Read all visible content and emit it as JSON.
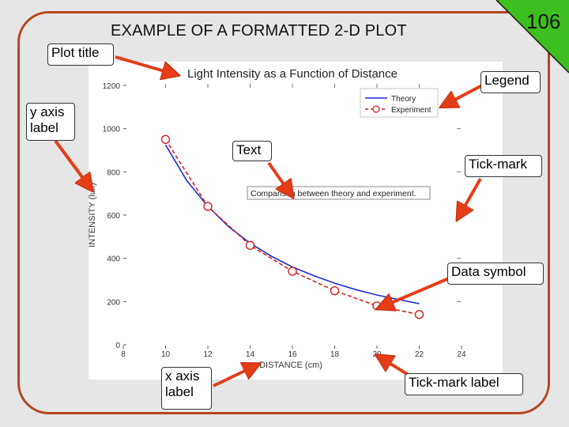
{
  "slide": {
    "title": "EXAMPLE OF A FORMATTED 2-D PLOT",
    "number": "106",
    "frame_color": "#b5461f",
    "triangle_color": "#3dbf1f"
  },
  "callouts": {
    "plot_title": "Plot title",
    "legend": "Legend",
    "y_axis_label": "y axis label",
    "text": "Text",
    "tick_mark": "Tick-mark",
    "data_symbol": "Data symbol",
    "x_axis_label": "x axis label",
    "tick_mark_label": "Tick-mark label"
  },
  "chart_data": {
    "type": "line",
    "title": "Light Intensity as a Function of Distance",
    "xlabel": "DISTANCE (cm)",
    "ylabel": "INTENSITY (lux)",
    "xlim": [
      8,
      24
    ],
    "ylim": [
      0,
      1200
    ],
    "x_ticks": [
      8,
      10,
      12,
      14,
      16,
      18,
      20,
      22,
      24
    ],
    "y_ticks": [
      0,
      200,
      400,
      600,
      800,
      1000,
      1200
    ],
    "annotation": "Comparison between theory and experiment.",
    "legend_position": "top-right",
    "series": [
      {
        "name": "Theory",
        "style": "solid",
        "color": "#1f2bd6",
        "x": [
          10,
          11,
          12,
          13,
          14,
          15,
          16,
          17,
          18,
          19,
          20,
          21,
          22
        ],
        "y": [
          925,
          760,
          640,
          545,
          470,
          410,
          360,
          320,
          285,
          255,
          230,
          210,
          190
        ]
      },
      {
        "name": "Experiment",
        "style": "dashed-markers",
        "color": "#d42020",
        "x": [
          10,
          12,
          14,
          16,
          18,
          20,
          22
        ],
        "y": [
          950,
          640,
          460,
          340,
          250,
          180,
          140
        ]
      }
    ]
  }
}
